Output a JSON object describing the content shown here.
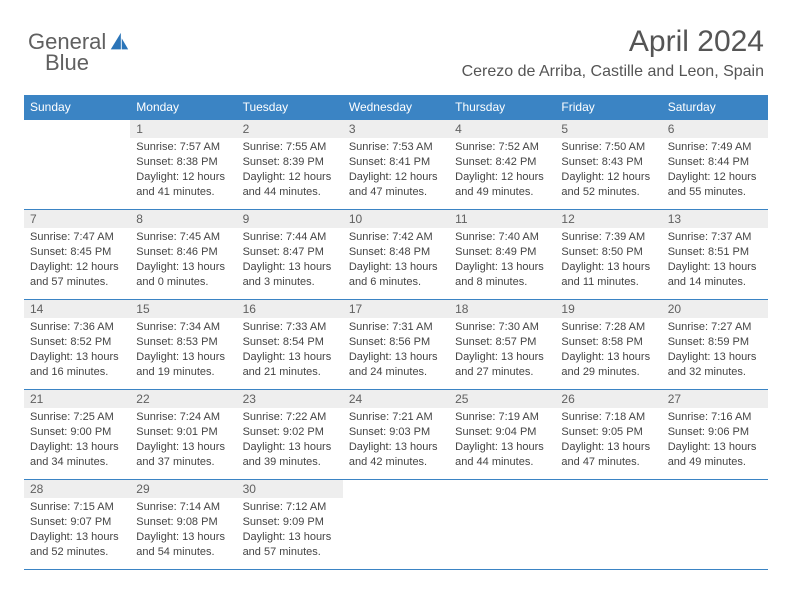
{
  "brand": {
    "part1": "General",
    "part2": "Blue",
    "iconColor": "#2a74b8"
  },
  "title": "April 2024",
  "location": "Cerezo de Arriba, Castille and Leon, Spain",
  "colors": {
    "headerBg": "#3b84c4",
    "rowDivider": "#3b84c4",
    "dayNumBg": "#eeeeee"
  },
  "day_headers": [
    "Sunday",
    "Monday",
    "Tuesday",
    "Wednesday",
    "Thursday",
    "Friday",
    "Saturday"
  ],
  "weeks": [
    [
      {
        "n": "",
        "sunrise": "",
        "sunset": "",
        "daylight": ""
      },
      {
        "n": "1",
        "sunrise": "Sunrise: 7:57 AM",
        "sunset": "Sunset: 8:38 PM",
        "daylight": "Daylight: 12 hours and 41 minutes."
      },
      {
        "n": "2",
        "sunrise": "Sunrise: 7:55 AM",
        "sunset": "Sunset: 8:39 PM",
        "daylight": "Daylight: 12 hours and 44 minutes."
      },
      {
        "n": "3",
        "sunrise": "Sunrise: 7:53 AM",
        "sunset": "Sunset: 8:41 PM",
        "daylight": "Daylight: 12 hours and 47 minutes."
      },
      {
        "n": "4",
        "sunrise": "Sunrise: 7:52 AM",
        "sunset": "Sunset: 8:42 PM",
        "daylight": "Daylight: 12 hours and 49 minutes."
      },
      {
        "n": "5",
        "sunrise": "Sunrise: 7:50 AM",
        "sunset": "Sunset: 8:43 PM",
        "daylight": "Daylight: 12 hours and 52 minutes."
      },
      {
        "n": "6",
        "sunrise": "Sunrise: 7:49 AM",
        "sunset": "Sunset: 8:44 PM",
        "daylight": "Daylight: 12 hours and 55 minutes."
      }
    ],
    [
      {
        "n": "7",
        "sunrise": "Sunrise: 7:47 AM",
        "sunset": "Sunset: 8:45 PM",
        "daylight": "Daylight: 12 hours and 57 minutes."
      },
      {
        "n": "8",
        "sunrise": "Sunrise: 7:45 AM",
        "sunset": "Sunset: 8:46 PM",
        "daylight": "Daylight: 13 hours and 0 minutes."
      },
      {
        "n": "9",
        "sunrise": "Sunrise: 7:44 AM",
        "sunset": "Sunset: 8:47 PM",
        "daylight": "Daylight: 13 hours and 3 minutes."
      },
      {
        "n": "10",
        "sunrise": "Sunrise: 7:42 AM",
        "sunset": "Sunset: 8:48 PM",
        "daylight": "Daylight: 13 hours and 6 minutes."
      },
      {
        "n": "11",
        "sunrise": "Sunrise: 7:40 AM",
        "sunset": "Sunset: 8:49 PM",
        "daylight": "Daylight: 13 hours and 8 minutes."
      },
      {
        "n": "12",
        "sunrise": "Sunrise: 7:39 AM",
        "sunset": "Sunset: 8:50 PM",
        "daylight": "Daylight: 13 hours and 11 minutes."
      },
      {
        "n": "13",
        "sunrise": "Sunrise: 7:37 AM",
        "sunset": "Sunset: 8:51 PM",
        "daylight": "Daylight: 13 hours and 14 minutes."
      }
    ],
    [
      {
        "n": "14",
        "sunrise": "Sunrise: 7:36 AM",
        "sunset": "Sunset: 8:52 PM",
        "daylight": "Daylight: 13 hours and 16 minutes."
      },
      {
        "n": "15",
        "sunrise": "Sunrise: 7:34 AM",
        "sunset": "Sunset: 8:53 PM",
        "daylight": "Daylight: 13 hours and 19 minutes."
      },
      {
        "n": "16",
        "sunrise": "Sunrise: 7:33 AM",
        "sunset": "Sunset: 8:54 PM",
        "daylight": "Daylight: 13 hours and 21 minutes."
      },
      {
        "n": "17",
        "sunrise": "Sunrise: 7:31 AM",
        "sunset": "Sunset: 8:56 PM",
        "daylight": "Daylight: 13 hours and 24 minutes."
      },
      {
        "n": "18",
        "sunrise": "Sunrise: 7:30 AM",
        "sunset": "Sunset: 8:57 PM",
        "daylight": "Daylight: 13 hours and 27 minutes."
      },
      {
        "n": "19",
        "sunrise": "Sunrise: 7:28 AM",
        "sunset": "Sunset: 8:58 PM",
        "daylight": "Daylight: 13 hours and 29 minutes."
      },
      {
        "n": "20",
        "sunrise": "Sunrise: 7:27 AM",
        "sunset": "Sunset: 8:59 PM",
        "daylight": "Daylight: 13 hours and 32 minutes."
      }
    ],
    [
      {
        "n": "21",
        "sunrise": "Sunrise: 7:25 AM",
        "sunset": "Sunset: 9:00 PM",
        "daylight": "Daylight: 13 hours and 34 minutes."
      },
      {
        "n": "22",
        "sunrise": "Sunrise: 7:24 AM",
        "sunset": "Sunset: 9:01 PM",
        "daylight": "Daylight: 13 hours and 37 minutes."
      },
      {
        "n": "23",
        "sunrise": "Sunrise: 7:22 AM",
        "sunset": "Sunset: 9:02 PM",
        "daylight": "Daylight: 13 hours and 39 minutes."
      },
      {
        "n": "24",
        "sunrise": "Sunrise: 7:21 AM",
        "sunset": "Sunset: 9:03 PM",
        "daylight": "Daylight: 13 hours and 42 minutes."
      },
      {
        "n": "25",
        "sunrise": "Sunrise: 7:19 AM",
        "sunset": "Sunset: 9:04 PM",
        "daylight": "Daylight: 13 hours and 44 minutes."
      },
      {
        "n": "26",
        "sunrise": "Sunrise: 7:18 AM",
        "sunset": "Sunset: 9:05 PM",
        "daylight": "Daylight: 13 hours and 47 minutes."
      },
      {
        "n": "27",
        "sunrise": "Sunrise: 7:16 AM",
        "sunset": "Sunset: 9:06 PM",
        "daylight": "Daylight: 13 hours and 49 minutes."
      }
    ],
    [
      {
        "n": "28",
        "sunrise": "Sunrise: 7:15 AM",
        "sunset": "Sunset: 9:07 PM",
        "daylight": "Daylight: 13 hours and 52 minutes."
      },
      {
        "n": "29",
        "sunrise": "Sunrise: 7:14 AM",
        "sunset": "Sunset: 9:08 PM",
        "daylight": "Daylight: 13 hours and 54 minutes."
      },
      {
        "n": "30",
        "sunrise": "Sunrise: 7:12 AM",
        "sunset": "Sunset: 9:09 PM",
        "daylight": "Daylight: 13 hours and 57 minutes."
      },
      {
        "n": "",
        "sunrise": "",
        "sunset": "",
        "daylight": ""
      },
      {
        "n": "",
        "sunrise": "",
        "sunset": "",
        "daylight": ""
      },
      {
        "n": "",
        "sunrise": "",
        "sunset": "",
        "daylight": ""
      },
      {
        "n": "",
        "sunrise": "",
        "sunset": "",
        "daylight": ""
      }
    ]
  ]
}
